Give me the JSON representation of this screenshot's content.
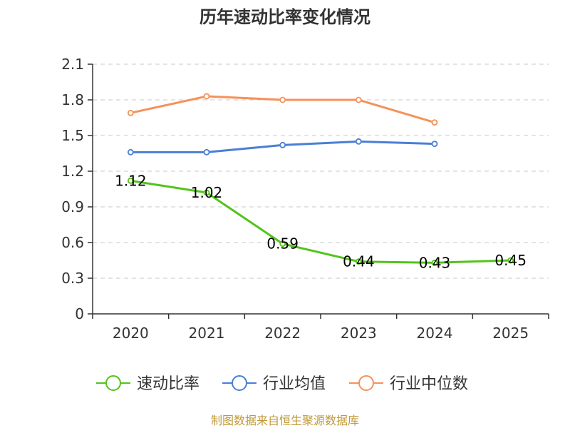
{
  "chart_data": {
    "type": "line",
    "title": "历年速动比率变化情况",
    "categories": [
      "2020",
      "2021",
      "2022",
      "2023",
      "2024",
      "2025"
    ],
    "ylim": [
      0,
      2.1
    ],
    "yticks": [
      "0",
      "0.3",
      "0.6",
      "0.9",
      "1.2",
      "1.5",
      "1.8",
      "2.1"
    ],
    "grid": true,
    "legend_position": "bottom",
    "series": [
      {
        "name": "速动比率",
        "color": "#52c41a",
        "values": [
          1.12,
          1.02,
          0.59,
          0.44,
          0.43,
          0.45
        ],
        "labels": [
          "1.12",
          "1.02",
          "0.59",
          "0.44",
          "0.43",
          "0.45"
        ]
      },
      {
        "name": "行业均值",
        "color": "#4a7fd6",
        "values": [
          1.36,
          1.36,
          1.42,
          1.45,
          1.43,
          null
        ]
      },
      {
        "name": "行业中位数",
        "color": "#f5925a",
        "values": [
          1.69,
          1.83,
          1.8,
          1.8,
          1.61,
          null
        ]
      }
    ],
    "source": "制图数据来自恒生聚源数据库"
  }
}
